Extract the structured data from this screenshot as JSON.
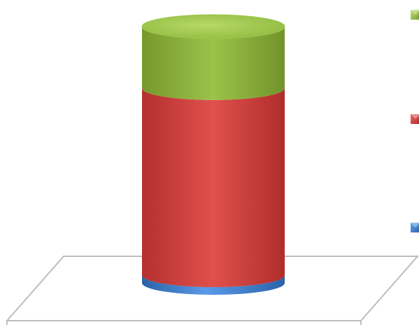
{
  "chart_data": {
    "type": "bar",
    "style": "3d-stacked-cylinder",
    "categories": [
      ""
    ],
    "series": [
      {
        "values": [
          3
        ],
        "color": "#3f7fd0"
      },
      {
        "values": [
          73
        ],
        "color": "#d13a38"
      },
      {
        "values": [
          24
        ],
        "color": "#8db23a"
      }
    ],
    "title": "",
    "xlabel": "",
    "ylabel": "",
    "legend": "right",
    "grid": false
  }
}
